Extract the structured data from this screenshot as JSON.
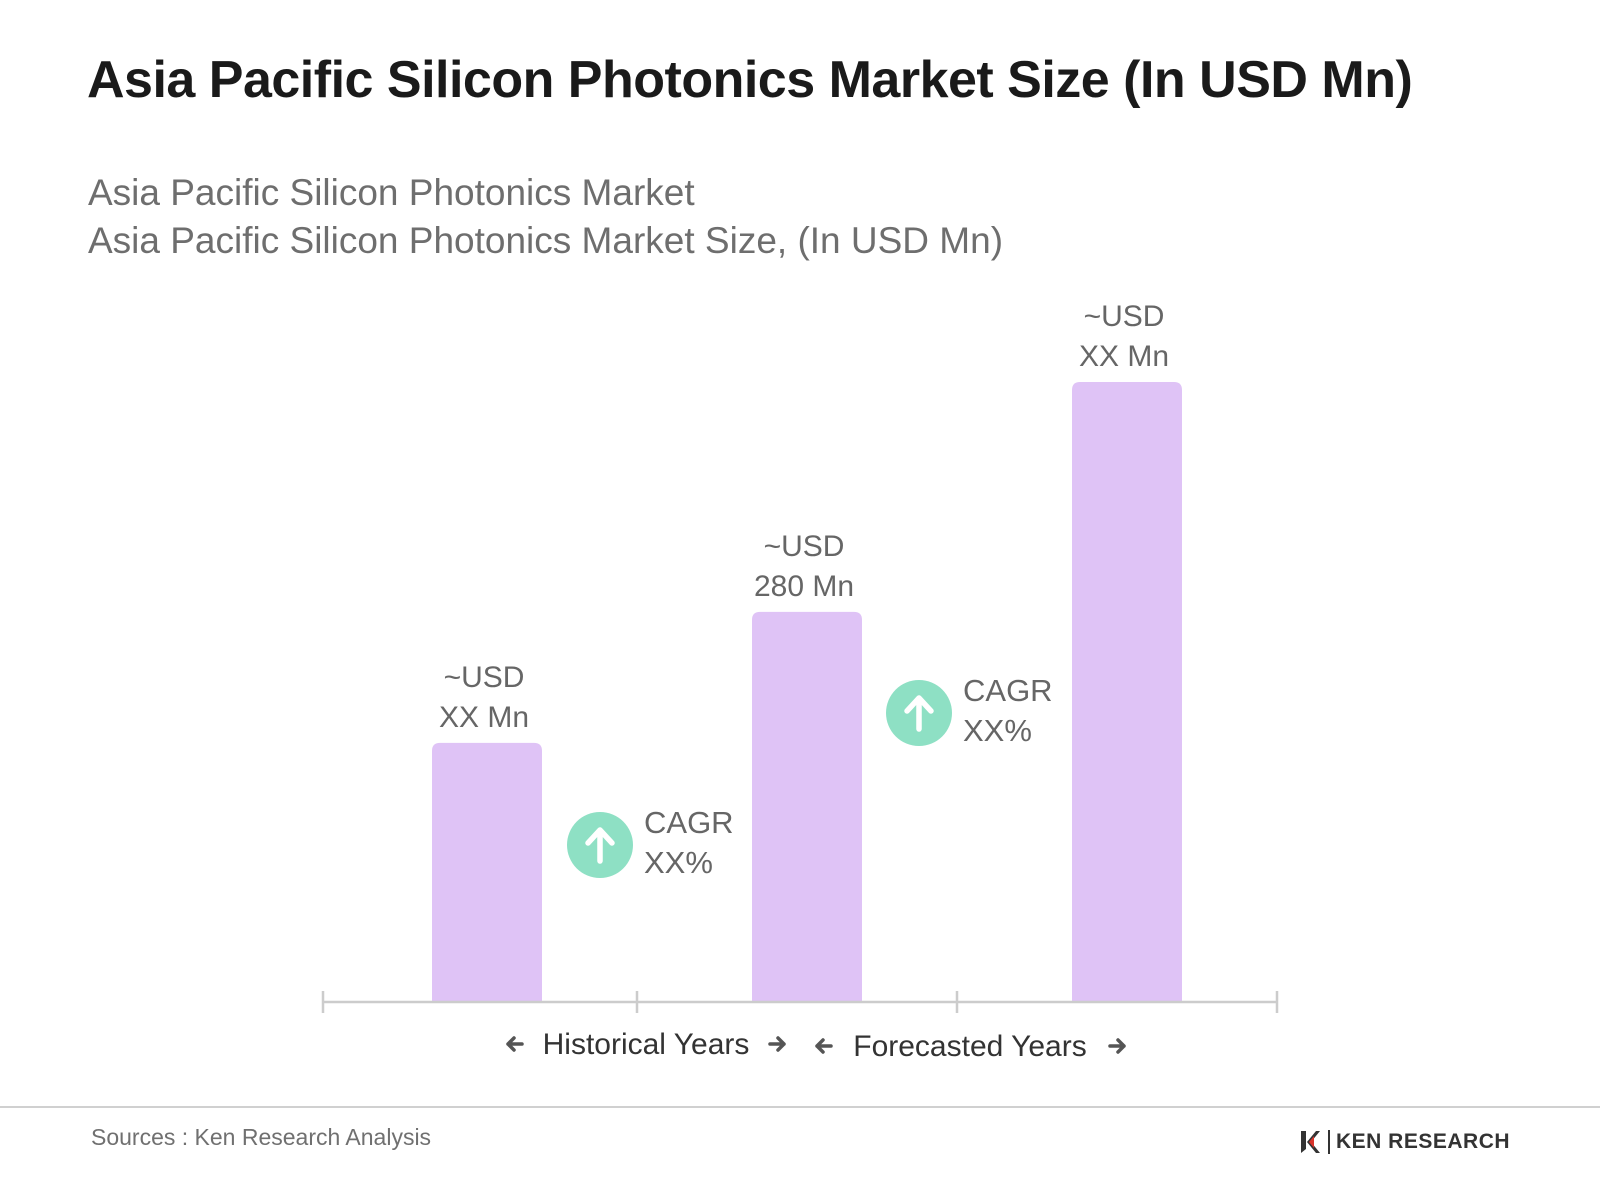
{
  "title": "Asia Pacific Silicon Photonics Market Size (In USD Mn)",
  "subtitle_line1": "Asia Pacific Silicon Photonics Market",
  "subtitle_line2": "Asia Pacific Silicon Photonics Market Size, (In USD Mn)",
  "source": "Sources : Ken Research Analysis",
  "logo_text": "KEN RESEARCH",
  "colors": {
    "bar": "#dfc3f6",
    "cagr_circle": "#8ee0c4",
    "axis": "#cccccc",
    "label": "#666666",
    "period_label": "#333333"
  },
  "chart_data": {
    "type": "bar",
    "title": "",
    "xlabel": "",
    "ylabel": "",
    "grid": false,
    "categories": [
      "",
      "",
      ""
    ],
    "values": [
      186,
      280,
      445
    ],
    "ylim": [
      0,
      480
    ],
    "bar_labels": [
      {
        "line1": "~USD",
        "line2": "XX Mn"
      },
      {
        "line1": "~USD",
        "line2": "280 Mn"
      },
      {
        "line1": "~USD",
        "line2": "XX Mn"
      }
    ],
    "annotations": [
      {
        "icon": "arrow-up-icon",
        "line1": "CAGR",
        "line2": "XX%"
      },
      {
        "icon": "arrow-up-icon",
        "line1": "CAGR",
        "line2": "XX%"
      }
    ],
    "period_labels": [
      "Historical Years",
      "Forecasted Years"
    ]
  }
}
